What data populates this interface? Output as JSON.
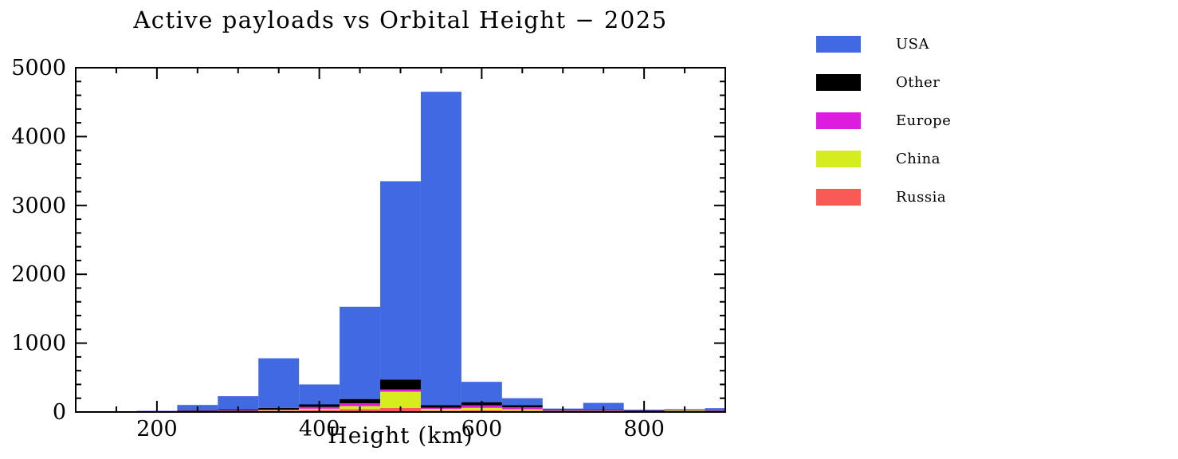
{
  "page": {
    "background": "#ffffff"
  },
  "chart_data": {
    "type": "bar",
    "subtype": "stacked-histogram",
    "title": "Active payloads vs Orbital Height − 2025",
    "xlabel": "Height (km)",
    "ylabel": "",
    "xlim": [
      100,
      900
    ],
    "ylim": [
      0,
      5000
    ],
    "xticks": [
      200,
      400,
      600,
      800
    ],
    "yticks": [
      0,
      1000,
      2000,
      3000,
      4000,
      5000
    ],
    "x_minor_step": 50,
    "y_minor_step": 200,
    "grid": false,
    "bin_width": 50,
    "bin_starts": [
      175,
      225,
      275,
      325,
      375,
      425,
      475,
      525,
      575,
      625,
      675,
      725,
      775,
      825,
      875
    ],
    "stack_order_bottom_to_top": [
      "Russia",
      "China",
      "Europe",
      "Other",
      "USA"
    ],
    "series": [
      {
        "name": "Russia",
        "color": "#FA5A55",
        "values": [
          4,
          8,
          10,
          15,
          28,
          40,
          60,
          20,
          25,
          18,
          10,
          10,
          8,
          8,
          6
        ]
      },
      {
        "name": "China",
        "color": "#D5ED1E",
        "values": [
          2,
          4,
          5,
          10,
          20,
          45,
          235,
          25,
          35,
          22,
          6,
          6,
          5,
          16,
          10
        ]
      },
      {
        "name": "Europe",
        "color": "#DD1DDD",
        "values": [
          2,
          4,
          6,
          10,
          26,
          42,
          32,
          18,
          38,
          28,
          6,
          6,
          4,
          4,
          4
        ]
      },
      {
        "name": "Other",
        "color": "#000000",
        "values": [
          3,
          8,
          14,
          25,
          36,
          62,
          145,
          38,
          45,
          32,
          10,
          10,
          6,
          5,
          6
        ]
      },
      {
        "name": "USA",
        "color": "#4169E1",
        "values": [
          6,
          78,
          195,
          720,
          290,
          1340,
          2880,
          4550,
          295,
          100,
          18,
          100,
          10,
          6,
          30
        ]
      }
    ],
    "legend": {
      "position": "top-right-outside",
      "order": [
        "USA",
        "Other",
        "Europe",
        "China",
        "Russia"
      ]
    }
  }
}
